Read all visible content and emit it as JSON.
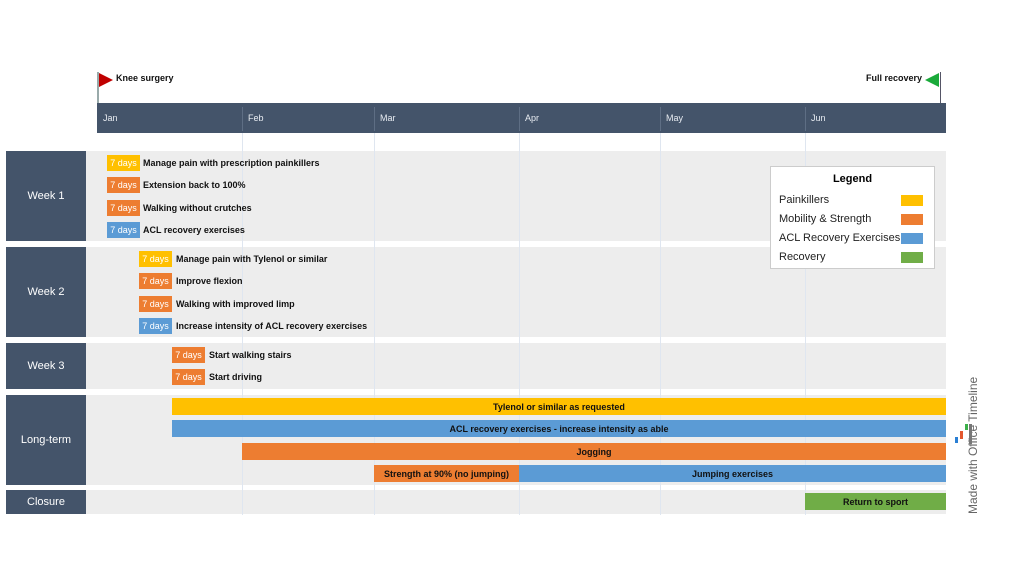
{
  "colors": {
    "painkillers": "#FFC000",
    "mobility": "#ED7D31",
    "acl": "#5B9BD5",
    "recovery": "#70AD47",
    "header": "#44546A"
  },
  "chart_data": {
    "type": "gantt",
    "months": [
      "Jan",
      "Feb",
      "Mar",
      "Apr",
      "May",
      "Jun"
    ],
    "milestones": [
      {
        "label": "Knee surgery",
        "flag": "red-flag-icon"
      },
      {
        "label": "Full recovery",
        "flag": "green-flag-icon"
      }
    ],
    "groups": [
      {
        "name": "Week 1",
        "tasks": [
          {
            "duration": "7 days",
            "label": "Manage  pain with prescription painkillers",
            "category": "Painkillers"
          },
          {
            "duration": "7 days",
            "label": "Extension back to 100%",
            "category": "Mobility & Strength"
          },
          {
            "duration": "7 days",
            "label": "Walking  without crutches",
            "category": "Mobility & Strength"
          },
          {
            "duration": "7 days",
            "label": "ACL recovery exercises",
            "category": "ACL Recovery Exercises"
          }
        ]
      },
      {
        "name": "Week 2",
        "tasks": [
          {
            "duration": "7 days",
            "label": "Manage  pain with Tylenol or similar",
            "category": "Painkillers"
          },
          {
            "duration": "7 days",
            "label": "Improve flexion",
            "category": "Mobility & Strength"
          },
          {
            "duration": "7 days",
            "label": "Walking  with improved limp",
            "category": "Mobility & Strength"
          },
          {
            "duration": "7 days",
            "label": "Increase intensity of ACL recovery exercises",
            "category": "ACL Recovery Exercises"
          }
        ]
      },
      {
        "name": "Week 3",
        "tasks": [
          {
            "duration": "7 days",
            "label": "Start walking stairs",
            "category": "Mobility & Strength"
          },
          {
            "duration": "7 days",
            "label": "Start driving",
            "category": "Mobility & Strength"
          }
        ]
      },
      {
        "name": "Long-term",
        "tasks": [
          {
            "label": "Tylenol or similar as requested",
            "category": "Painkillers"
          },
          {
            "label": "ACL recovery exercises - increase intensity as able",
            "category": "ACL Recovery Exercises"
          },
          {
            "label": "Jogging",
            "category": "Mobility & Strength"
          },
          {
            "label": "Strength at 90% (no jumping)",
            "category": "Mobility & Strength"
          },
          {
            "label": "Jumping exercises",
            "category": "ACL Recovery Exercises"
          }
        ]
      },
      {
        "name": "Closure",
        "tasks": [
          {
            "label": "Return to sport",
            "category": "Recovery"
          }
        ]
      }
    ],
    "legend": {
      "title": "Legend",
      "items": [
        "Painkillers",
        "Mobility & Strength",
        "ACL Recovery Exercises",
        "Recovery"
      ]
    }
  },
  "watermark": "Made with Office Timeline"
}
